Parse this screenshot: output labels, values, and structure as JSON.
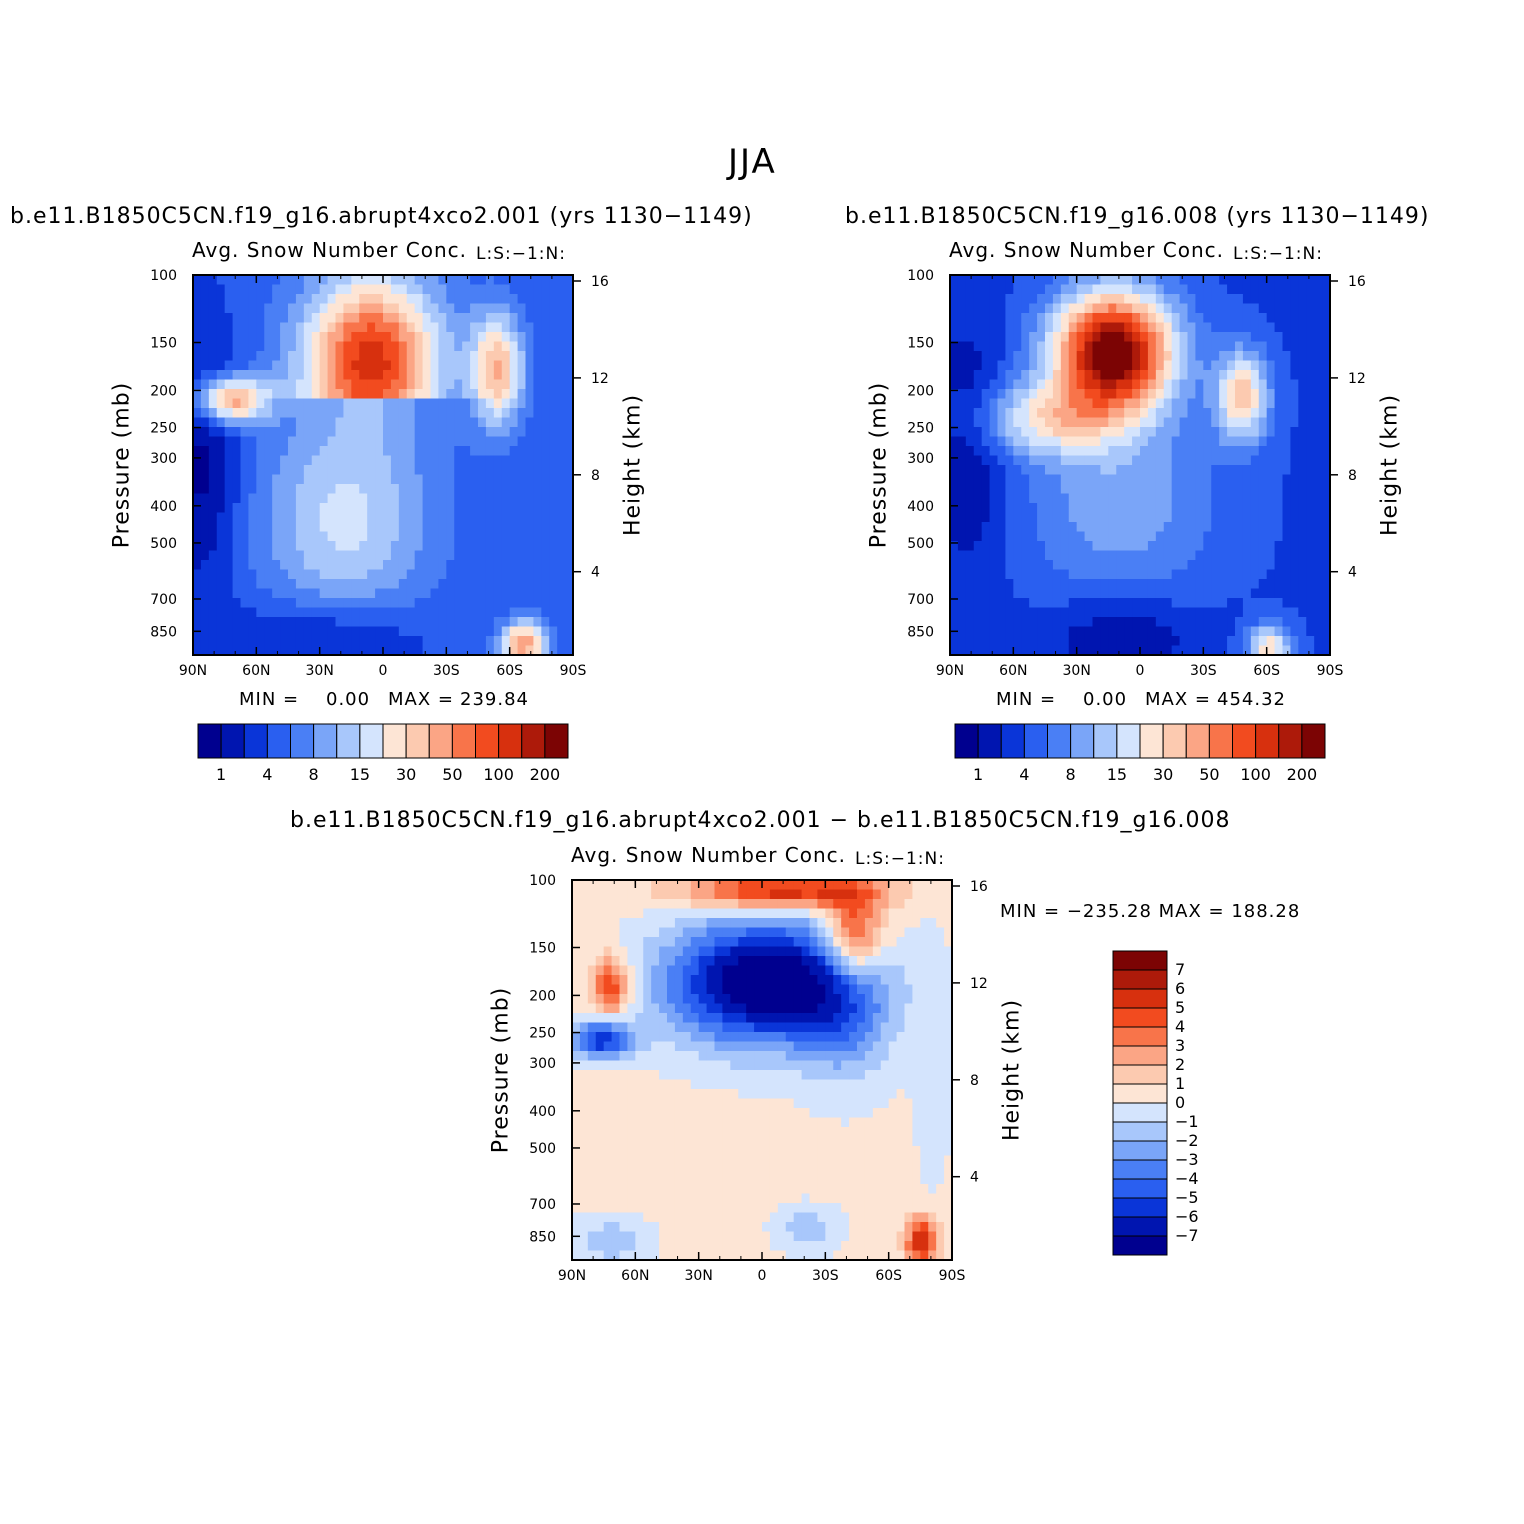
{
  "title": "JJA",
  "colors": {
    "abs_levels": [
      "#00008f",
      "#0015b0",
      "#0a35d8",
      "#2a5ff0",
      "#4a7ff5",
      "#7aa5f8",
      "#a8c7fb",
      "#d4e4fd",
      "#fde5d5",
      "#fccab0",
      "#fba585",
      "#f8744a",
      "#f24b1f",
      "#d7300e",
      "#ad1a0a",
      "#7c0404"
    ],
    "diff_levels": [
      "#00008f",
      "#0015b0",
      "#0a35d8",
      "#2a5ff0",
      "#4a7ff5",
      "#7aa5f8",
      "#a8c7fb",
      "#d4e4fd",
      "#fde5d5",
      "#fccab0",
      "#fba585",
      "#f8744a",
      "#f24b1f",
      "#d7300e",
      "#ad1a0a",
      "#7c0404"
    ]
  },
  "panels": [
    {
      "case": "b.e11.B1850C5CN.f19_g16.abrupt4xco2.001 (yrs 1130−1149)",
      "variable": "Avg. Snow Number Conc.",
      "side": "L:S:−1:N:",
      "ylabel": "Pressure (mb)",
      "ylabel2": "Height (km)",
      "min_label": "MIN =",
      "min_value": "0.00",
      "max_label": "MAX =",
      "max_value": "239.84"
    },
    {
      "case": "b.e11.B1850C5CN.f19_g16.008 (yrs 1130−1149)",
      "variable": "Avg. Snow Number Conc.",
      "side": "L:S:−1:N:",
      "ylabel": "Pressure (mb)",
      "ylabel2": "Height (km)",
      "min_label": "MIN =",
      "min_value": "0.00",
      "max_label": "MAX =",
      "max_value": "454.32"
    },
    {
      "case": "b.e11.B1850C5CN.f19_g16.abrupt4xco2.001 − b.e11.B1850C5CN.f19_g16.008",
      "variable": "Avg. Snow Number Conc.",
      "side": "L:S:−1:N:",
      "ylabel": "Pressure (mb)",
      "ylabel2": "Height (km)",
      "minmax": "MIN = −235.28   MAX = 188.28"
    }
  ],
  "chart_data": [
    {
      "type": "heatmap",
      "panel": 0,
      "x_ticks": [
        "90N",
        "60N",
        "30N",
        "0",
        "30S",
        "60S",
        "90S"
      ],
      "y_ticks": [
        "100",
        "150",
        "200",
        "250",
        "300",
        "400",
        "500",
        "700",
        "850"
      ],
      "y_ticks_right": [
        "16",
        "12",
        "8",
        "4"
      ],
      "colorbar_labels": [
        "1",
        "4",
        "8",
        "15",
        "30",
        "50",
        "100",
        "200"
      ],
      "summary": {
        "min": 0.0,
        "max": 239.84
      }
    },
    {
      "type": "heatmap",
      "panel": 1,
      "x_ticks": [
        "90N",
        "60N",
        "30N",
        "0",
        "30S",
        "60S",
        "90S"
      ],
      "y_ticks": [
        "100",
        "150",
        "200",
        "250",
        "300",
        "400",
        "500",
        "700",
        "850"
      ],
      "y_ticks_right": [
        "16",
        "12",
        "8",
        "4"
      ],
      "colorbar_labels": [
        "1",
        "4",
        "8",
        "15",
        "30",
        "50",
        "100",
        "200"
      ],
      "summary": {
        "min": 0.0,
        "max": 454.32
      }
    },
    {
      "type": "heatmap",
      "panel": 2,
      "x_ticks": [
        "90N",
        "60N",
        "30N",
        "0",
        "30S",
        "60S",
        "90S"
      ],
      "y_ticks": [
        "100",
        "150",
        "200",
        "250",
        "300",
        "400",
        "500",
        "700",
        "850"
      ],
      "y_ticks_right": [
        "16",
        "12",
        "8",
        "4"
      ],
      "colorbar_labels": [
        "7",
        "6",
        "5",
        "4",
        "3",
        "2",
        "1",
        "0",
        "−1",
        "−2",
        "−3",
        "−4",
        "−5",
        "−6",
        "−7"
      ],
      "summary": {
        "min": -235.28,
        "max": 188.28
      }
    }
  ]
}
